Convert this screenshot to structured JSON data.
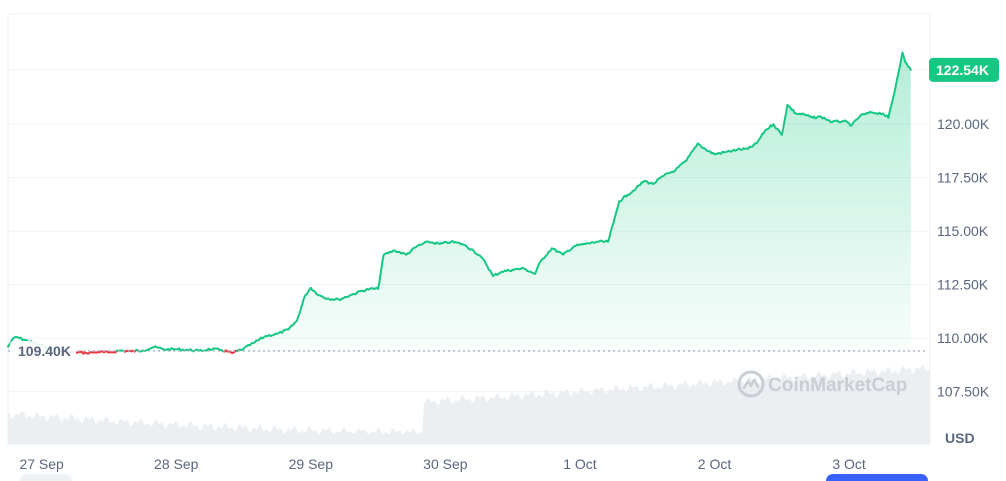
{
  "chart_data": {
    "type": "area",
    "currency": "USD",
    "watermark": "CoinMarketCap",
    "current_price_label": "122.54K",
    "reference_label": "109.40K",
    "reference_value": 109.4,
    "y_ticks": [
      {
        "value": 122.54,
        "label": ""
      },
      {
        "value": 120.0,
        "label": "120.00K"
      },
      {
        "value": 117.5,
        "label": "117.50K"
      },
      {
        "value": 115.0,
        "label": "115.00K"
      },
      {
        "value": 112.5,
        "label": "112.50K"
      },
      {
        "value": 110.0,
        "label": "110.00K"
      },
      {
        "value": 107.5,
        "label": "107.50K"
      }
    ],
    "ylim": [
      105.05,
      125.15
    ],
    "x_range": [
      "2025-09-26T18:00",
      "2025-10-03T13:00"
    ],
    "x_ticks": [
      {
        "t": "2025-09-27T00:00",
        "label": "27 Sep"
      },
      {
        "t": "2025-09-28T00:00",
        "label": "28 Sep"
      },
      {
        "t": "2025-09-29T00:00",
        "label": "29 Sep"
      },
      {
        "t": "2025-09-30T00:00",
        "label": "30 Sep"
      },
      {
        "t": "2025-10-01T00:00",
        "label": "1 Oct"
      },
      {
        "t": "2025-10-02T00:00",
        "label": "2 Oct"
      },
      {
        "t": "2025-10-03T00:00",
        "label": "3 Oct"
      }
    ],
    "series": [
      {
        "color_up": "#16c784",
        "color_down": "#ea3943",
        "points": [
          [
            "2025-09-26T18:00",
            109.6
          ],
          [
            "2025-09-26T19:00",
            110.0
          ],
          [
            "2025-09-26T19:30",
            110.05
          ],
          [
            "2025-09-27T01:00",
            109.55
          ],
          [
            "2025-09-27T03:00",
            109.45
          ],
          [
            "2025-09-27T04:00",
            109.3
          ],
          [
            "2025-09-27T06:00",
            109.35
          ],
          [
            "2025-09-27T08:00",
            109.3
          ],
          [
            "2025-09-27T10:00",
            109.35
          ],
          [
            "2025-09-27T12:00",
            109.32
          ],
          [
            "2025-09-27T14:00",
            109.42
          ],
          [
            "2025-09-27T16:00",
            109.38
          ],
          [
            "2025-09-27T18:00",
            109.42
          ],
          [
            "2025-09-27T20:00",
            109.58
          ],
          [
            "2025-09-27T22:00",
            109.47
          ],
          [
            "2025-09-28T00:00",
            109.48
          ],
          [
            "2025-09-28T02:00",
            109.45
          ],
          [
            "2025-09-28T04:00",
            109.4
          ],
          [
            "2025-09-28T06:00",
            109.48
          ],
          [
            "2025-09-28T08:00",
            109.45
          ],
          [
            "2025-09-28T10:00",
            109.3
          ],
          [
            "2025-09-28T12:00",
            109.5
          ],
          [
            "2025-09-28T14:00",
            109.8
          ],
          [
            "2025-09-28T16:00",
            110.1
          ],
          [
            "2025-09-28T18:00",
            110.2
          ],
          [
            "2025-09-28T20:00",
            110.4
          ],
          [
            "2025-09-28T21:30",
            110.8
          ],
          [
            "2025-09-28T23:00",
            112.0
          ],
          [
            "2025-09-29T00:00",
            112.35
          ],
          [
            "2025-09-29T01:30",
            112.0
          ],
          [
            "2025-09-29T03:00",
            111.85
          ],
          [
            "2025-09-29T05:00",
            111.8
          ],
          [
            "2025-09-29T07:00",
            112.0
          ],
          [
            "2025-09-29T09:00",
            112.2
          ],
          [
            "2025-09-29T10:30",
            112.3
          ],
          [
            "2025-09-29T12:00",
            112.3
          ],
          [
            "2025-09-29T13:00",
            113.9
          ],
          [
            "2025-09-29T15:00",
            114.1
          ],
          [
            "2025-09-29T17:00",
            113.9
          ],
          [
            "2025-09-29T19:00",
            114.3
          ],
          [
            "2025-09-29T21:00",
            114.5
          ],
          [
            "2025-09-29T23:00",
            114.4
          ],
          [
            "2025-09-30T01:00",
            114.5
          ],
          [
            "2025-09-30T03:00",
            114.4
          ],
          [
            "2025-09-30T05:00",
            114.1
          ],
          [
            "2025-09-30T07:00",
            113.6
          ],
          [
            "2025-09-30T08:30",
            112.9
          ],
          [
            "2025-09-30T10:00",
            113.1
          ],
          [
            "2025-09-30T12:00",
            113.2
          ],
          [
            "2025-09-30T14:00",
            113.25
          ],
          [
            "2025-09-30T16:00",
            113.0
          ],
          [
            "2025-09-30T17:00",
            113.6
          ],
          [
            "2025-09-30T19:00",
            114.2
          ],
          [
            "2025-09-30T21:00",
            113.9
          ],
          [
            "2025-09-30T23:00",
            114.3
          ],
          [
            "2025-10-01T01:00",
            114.4
          ],
          [
            "2025-10-01T03:00",
            114.5
          ],
          [
            "2025-10-01T05:00",
            114.5
          ],
          [
            "2025-10-01T06:00",
            115.4
          ],
          [
            "2025-10-01T07:00",
            116.4
          ],
          [
            "2025-10-01T08:30",
            116.7
          ],
          [
            "2025-10-01T10:00",
            117.0
          ],
          [
            "2025-10-01T11:30",
            117.35
          ],
          [
            "2025-10-01T13:00",
            117.2
          ],
          [
            "2025-10-01T15:00",
            117.6
          ],
          [
            "2025-10-01T17:00",
            117.85
          ],
          [
            "2025-10-01T19:00",
            118.3
          ],
          [
            "2025-10-01T21:00",
            119.1
          ],
          [
            "2025-10-01T22:30",
            118.8
          ],
          [
            "2025-10-02T00:00",
            118.6
          ],
          [
            "2025-10-02T02:00",
            118.7
          ],
          [
            "2025-10-02T04:00",
            118.8
          ],
          [
            "2025-10-02T06:00",
            118.85
          ],
          [
            "2025-10-02T07:30",
            119.1
          ],
          [
            "2025-10-02T09:00",
            119.7
          ],
          [
            "2025-10-02T10:30",
            120.0
          ],
          [
            "2025-10-02T12:00",
            119.5
          ],
          [
            "2025-10-02T13:00",
            120.9
          ],
          [
            "2025-10-02T14:30",
            120.5
          ],
          [
            "2025-10-02T16:00",
            120.45
          ],
          [
            "2025-10-02T17:30",
            120.3
          ],
          [
            "2025-10-02T19:00",
            120.35
          ],
          [
            "2025-10-02T21:00",
            120.1
          ],
          [
            "2025-10-02T23:00",
            120.15
          ],
          [
            "2025-10-03T00:30",
            119.95
          ],
          [
            "2025-10-03T02:00",
            120.4
          ],
          [
            "2025-10-03T04:00",
            120.55
          ],
          [
            "2025-10-03T06:00",
            120.5
          ],
          [
            "2025-10-03T07:00",
            120.3
          ],
          [
            "2025-10-03T08:00",
            121.4
          ],
          [
            "2025-10-03T09:30",
            123.35
          ],
          [
            "2025-10-03T10:00",
            122.9
          ],
          [
            "2025-10-03T11:00",
            122.54
          ]
        ]
      }
    ]
  }
}
